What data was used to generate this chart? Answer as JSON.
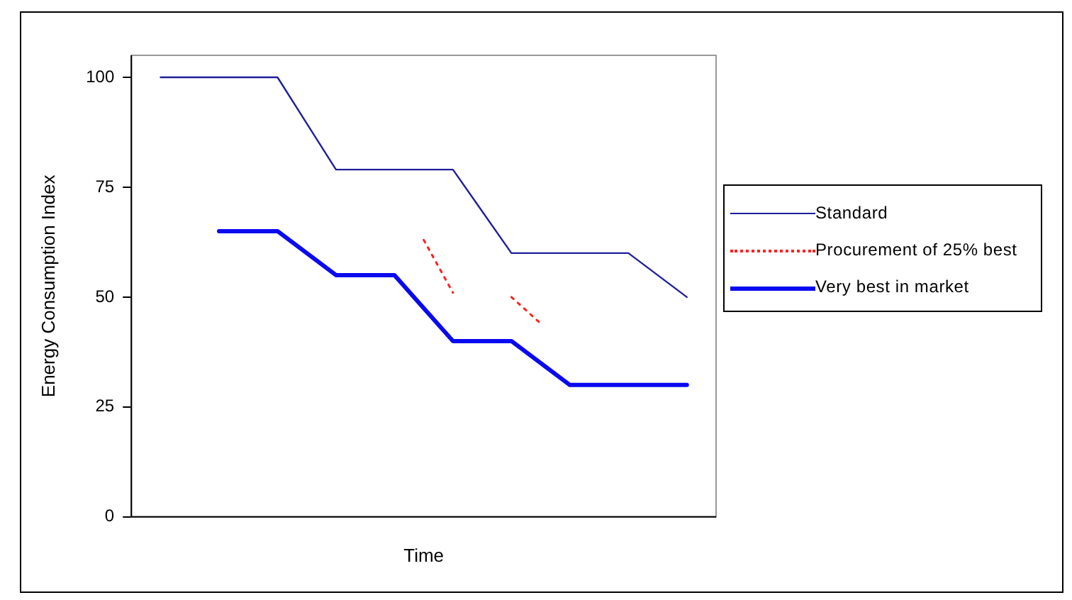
{
  "chart_data": {
    "type": "line",
    "xlabel": "Time",
    "ylabel": "Energy Consumption Index",
    "categories": [
      null,
      null,
      null,
      null,
      null,
      null,
      null,
      null,
      null,
      null,
      null,
      null,
      null,
      null,
      null,
      null,
      null,
      null,
      null,
      null,
      null
    ],
    "ylim": [
      0,
      105
    ],
    "yticks": [
      0,
      25,
      50,
      75,
      100
    ],
    "tick_labels": "y",
    "grid": false,
    "legend": "right",
    "marker": "none",
    "series": [
      {
        "name": "Standard",
        "color": "#1f1f99",
        "line_style": "solid",
        "values": [
          null,
          100,
          100,
          100,
          100,
          100,
          89.5,
          79,
          79,
          79,
          79,
          79,
          69.5,
          60,
          60,
          60,
          60,
          60,
          55,
          50,
          null
        ]
      },
      {
        "name": "Procurement of 25% best",
        "color": "#ff2020",
        "line_style": "dotted",
        "values": [
          null,
          null,
          null,
          null,
          null,
          null,
          null,
          null,
          null,
          null,
          63,
          51,
          null,
          50,
          44,
          null,
          null,
          null,
          null,
          null,
          null
        ]
      },
      {
        "name": "Very best in market",
        "color": "#0a0af0",
        "line_style": "solid",
        "values": [
          null,
          null,
          null,
          65,
          65,
          65,
          60,
          55,
          55,
          55,
          47.5,
          40,
          40,
          40,
          35,
          30,
          30,
          30,
          30,
          30,
          null
        ]
      }
    ]
  }
}
